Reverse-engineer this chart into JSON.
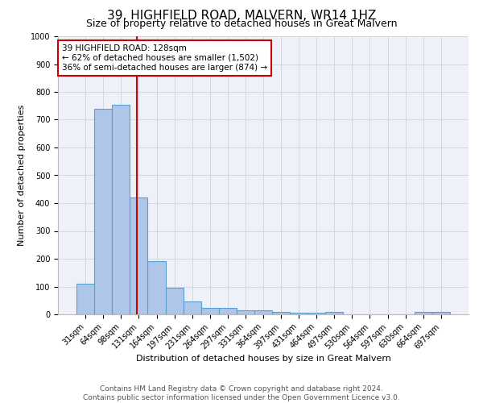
{
  "title": "39, HIGHFIELD ROAD, MALVERN, WR14 1HZ",
  "subtitle": "Size of property relative to detached houses in Great Malvern",
  "xlabel": "Distribution of detached houses by size in Great Malvern",
  "ylabel": "Number of detached properties",
  "categories": [
    "31sqm",
    "64sqm",
    "98sqm",
    "131sqm",
    "164sqm",
    "197sqm",
    "231sqm",
    "264sqm",
    "297sqm",
    "331sqm",
    "364sqm",
    "397sqm",
    "431sqm",
    "464sqm",
    "497sqm",
    "530sqm",
    "564sqm",
    "597sqm",
    "630sqm",
    "664sqm",
    "697sqm"
  ],
  "values": [
    110,
    740,
    755,
    420,
    190,
    95,
    47,
    22,
    22,
    15,
    15,
    10,
    5,
    5,
    10,
    0,
    0,
    0,
    0,
    8,
    8
  ],
  "bar_color": "#aec6e8",
  "bar_edge_color": "#5a9fd4",
  "vline_color": "#cc0000",
  "annotation_text": "39 HIGHFIELD ROAD: 128sqm\n← 62% of detached houses are smaller (1,502)\n36% of semi-detached houses are larger (874) →",
  "annotation_box_color": "#ffffff",
  "annotation_box_edge": "#cc0000",
  "ylim": [
    0,
    1000
  ],
  "yticks": [
    0,
    100,
    200,
    300,
    400,
    500,
    600,
    700,
    800,
    900,
    1000
  ],
  "footer_line1": "Contains HM Land Registry data © Crown copyright and database right 2024.",
  "footer_line2": "Contains public sector information licensed under the Open Government Licence v3.0.",
  "grid_color": "#d0d8e8",
  "background_color": "#eef2f8",
  "title_fontsize": 11,
  "subtitle_fontsize": 9,
  "footer_fontsize": 6.5,
  "tick_fontsize": 7,
  "ylabel_fontsize": 8,
  "xlabel_fontsize": 8
}
